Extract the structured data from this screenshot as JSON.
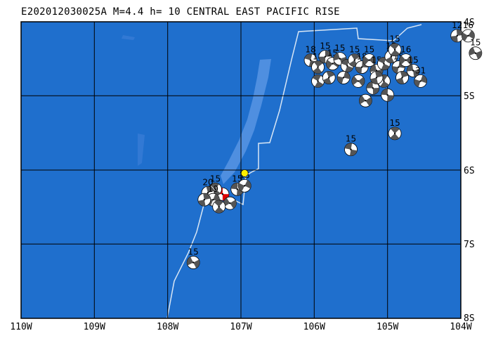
{
  "title": "E202012030025A M=4.4 h= 10 CENTRAL EAST PACIFIC RISE",
  "colors": {
    "ocean": "#1f6fcd",
    "ridge_shallow": "#4f8fe0",
    "plate_boundary": "#d8e6f5",
    "grid": "#000000",
    "focal_dark": "#555555",
    "focal_light": "#ffffff",
    "event_focal": "#e00000",
    "volcano_marker": "#ffee00"
  },
  "axes": {
    "lon_labels": [
      "110W",
      "109W",
      "108W",
      "107W",
      "106W",
      "105W",
      "104W"
    ],
    "lat_labels": [
      "4S",
      "5S",
      "6S",
      "7S",
      "8S"
    ],
    "lon_range": [
      -110,
      -104
    ],
    "lat_range": [
      -8,
      -3.75
    ]
  },
  "mechanisms": [
    {
      "lon": -107.25,
      "lat": -6.22,
      "label": "",
      "event": true
    },
    {
      "lon": -107.35,
      "lat": -6.15,
      "label": "15"
    },
    {
      "lon": -107.45,
      "lat": -6.2,
      "label": "20"
    },
    {
      "lon": -107.38,
      "lat": -6.3,
      "label": "19"
    },
    {
      "lon": -107.15,
      "lat": -6.35,
      "label": ""
    },
    {
      "lon": -107.05,
      "lat": -6.15,
      "label": "15"
    },
    {
      "lon": -107.3,
      "lat": -6.4,
      "label": ""
    },
    {
      "lon": -107.5,
      "lat": -6.3,
      "label": ""
    },
    {
      "lon": -106.95,
      "lat": -6.1,
      "label": "15"
    },
    {
      "lon": -107.65,
      "lat": -7.2,
      "label": "15"
    },
    {
      "lon": -105.5,
      "lat": -5.58,
      "label": "15"
    },
    {
      "lon": -104.9,
      "lat": -5.35,
      "label": "15"
    },
    {
      "lon": -104.05,
      "lat": -3.95,
      "label": "12"
    },
    {
      "lon": -103.9,
      "lat": -3.95,
      "label": "16"
    },
    {
      "lon": -103.8,
      "lat": -4.2,
      "label": "15"
    },
    {
      "lon": -106.05,
      "lat": -4.3,
      "label": "18"
    },
    {
      "lon": -105.95,
      "lat": -4.4,
      "label": "18"
    },
    {
      "lon": -105.85,
      "lat": -4.25,
      "label": "15"
    },
    {
      "lon": -105.75,
      "lat": -4.35,
      "label": "15"
    },
    {
      "lon": -105.65,
      "lat": -4.28,
      "label": "15"
    },
    {
      "lon": -105.55,
      "lat": -4.38,
      "label": ""
    },
    {
      "lon": -105.45,
      "lat": -4.3,
      "label": "15"
    },
    {
      "lon": -105.35,
      "lat": -4.4,
      "label": "18"
    },
    {
      "lon": -105.25,
      "lat": -4.3,
      "label": "15"
    },
    {
      "lon": -105.15,
      "lat": -4.45,
      "label": "15"
    },
    {
      "lon": -105.05,
      "lat": -4.35,
      "label": ""
    },
    {
      "lon": -104.95,
      "lat": -4.25,
      "label": "15"
    },
    {
      "lon": -104.85,
      "lat": -4.4,
      "label": "15"
    },
    {
      "lon": -104.75,
      "lat": -4.3,
      "label": "16"
    },
    {
      "lon": -104.65,
      "lat": -4.45,
      "label": "15"
    },
    {
      "lon": -105.95,
      "lat": -4.6,
      "label": ""
    },
    {
      "lon": -105.8,
      "lat": -4.55,
      "label": ""
    },
    {
      "lon": -105.6,
      "lat": -4.55,
      "label": ""
    },
    {
      "lon": -105.4,
      "lat": -4.6,
      "label": ""
    },
    {
      "lon": -105.2,
      "lat": -4.7,
      "label": ""
    },
    {
      "lon": -105.05,
      "lat": -4.6,
      "label": ""
    },
    {
      "lon": -104.8,
      "lat": -4.55,
      "label": ""
    },
    {
      "lon": -104.55,
      "lat": -4.6,
      "label": "31"
    },
    {
      "lon": -105.3,
      "lat": -4.88,
      "label": ""
    },
    {
      "lon": -105.0,
      "lat": -4.8,
      "label": ""
    },
    {
      "lon": -104.9,
      "lat": -4.15,
      "label": "15"
    },
    {
      "lon": -105.15,
      "lat": -4.55,
      "label": ""
    }
  ],
  "volcano": {
    "lon": -106.95,
    "lat": -5.92
  }
}
